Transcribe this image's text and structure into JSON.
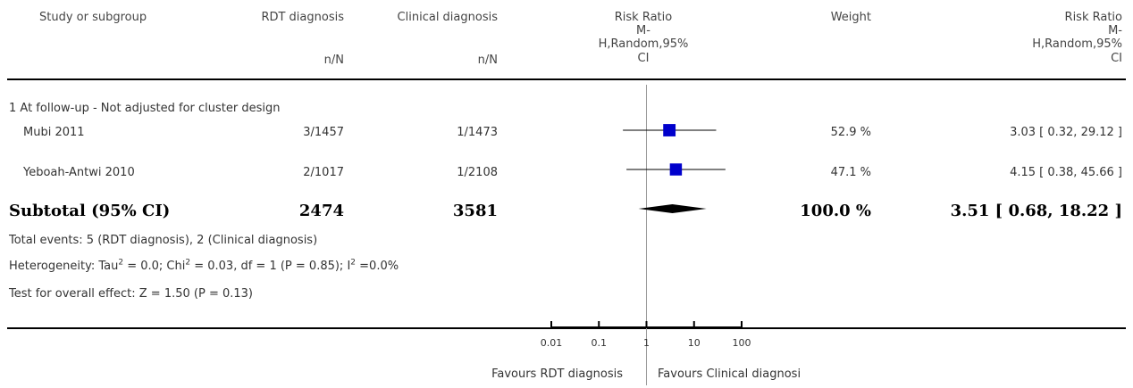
{
  "header": {
    "study": "Study or subgroup",
    "g1": "RDT diagnosis",
    "g2": "Clinical diagnosis",
    "rr_title": "Risk Ratio",
    "rr_method_1": "M-",
    "rr_method_2": "H,Random,95%",
    "rr_method_3": "CI",
    "weight": "Weight",
    "rr2_title": "Risk Ratio",
    "rr2_method_1": "M-",
    "rr2_method_2": "H,Random,95%",
    "rr2_method_3": "CI",
    "g1_unit": "n/N",
    "g2_unit": "n/N"
  },
  "subgroup": {
    "title": "1 At follow-up - Not adjusted for cluster design",
    "studies": [
      {
        "name": "Mubi 2011",
        "g1": "3/1457",
        "g2": "1/1473",
        "weight": "52.9 %",
        "ci_text": "3.03 [ 0.32, 29.12 ]"
      },
      {
        "name": "Yeboah-Antwi 2010",
        "g1": "2/1017",
        "g2": "1/2108",
        "weight": "47.1 %",
        "ci_text": "4.15 [ 0.38, 45.66 ]"
      }
    ],
    "subtotal": {
      "label": "Subtotal (95% CI)",
      "g1": "2474",
      "g2": "3581",
      "weight": "100.0 %",
      "ci_text": "3.51 [ 0.68, 18.22 ]"
    },
    "total_events": "Total events: 5 (RDT diagnosis), 2 (Clinical diagnosis)",
    "heterogeneity": {
      "prefix": "Heterogeneity: Tau",
      "sq1": "2",
      "part2": " = 0.0; Chi",
      "sq2": "2",
      "part3": " = 0.03, df = 1 (P = 0.85); I",
      "sq3": "2",
      "part4": " =0.0%"
    },
    "overall_effect": "Test for overall effect: Z = 1.50 (P = 0.13)"
  },
  "footer": {
    "favours_left": "Favours RDT diagnosis",
    "favours_right": "Favours Clinical diagnosi"
  },
  "colors": {
    "marker": "#0000cc",
    "diamond": "#000000",
    "line": "#000000",
    "null_line": "#999999"
  },
  "chart_data": {
    "type": "scatter",
    "x_scale": "log",
    "xlim": [
      0.01,
      100
    ],
    "tick_values": [
      0.01,
      0.1,
      1,
      10,
      100
    ],
    "tick_labels": [
      "0.01",
      "0.1",
      "1",
      "10",
      "100"
    ],
    "null_value": 1,
    "studies": [
      {
        "name": "Mubi 2011",
        "rr": 3.03,
        "lower": 0.32,
        "upper": 29.12,
        "weight": 52.9
      },
      {
        "name": "Yeboah-Antwi 2010",
        "rr": 4.15,
        "lower": 0.38,
        "upper": 45.66,
        "weight": 47.1
      }
    ],
    "pooled": {
      "rr": 3.51,
      "lower": 0.68,
      "upper": 18.22
    }
  }
}
